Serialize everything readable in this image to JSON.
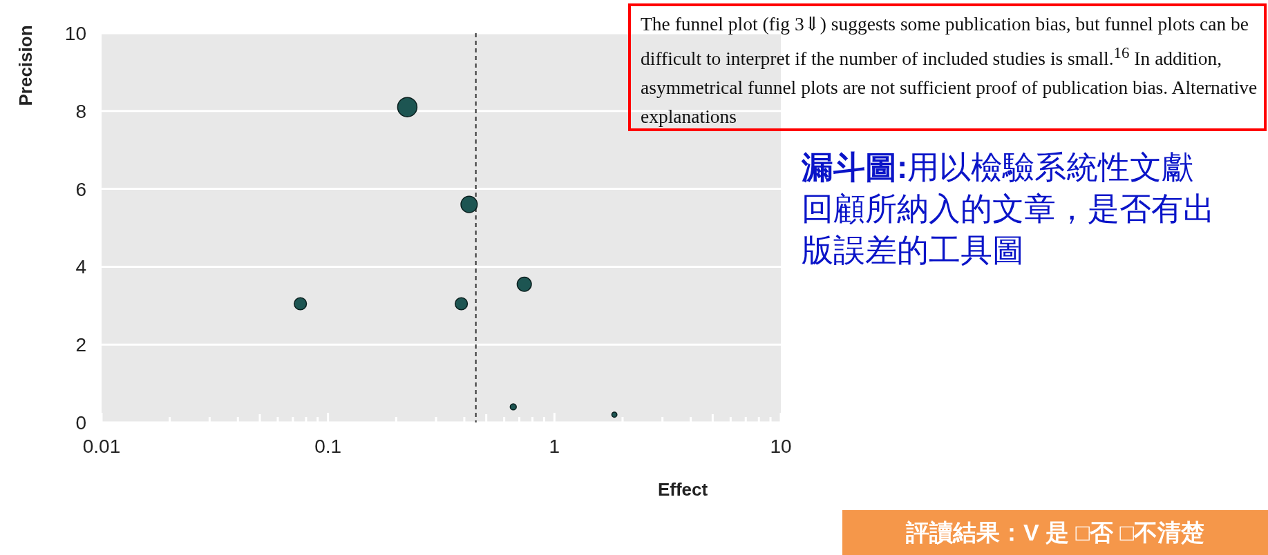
{
  "chart_data": {
    "type": "bubble",
    "xlabel": "Effect",
    "ylabel": "Precision",
    "x": [
      0.224,
      0.42,
      0.0755,
      0.388,
      0.736,
      0.658,
      1.84
    ],
    "values": [
      8.1,
      5.6,
      3.05,
      3.05,
      3.55,
      0.4,
      0.2
    ],
    "sizes": [
      1,
      0.71,
      0.4,
      0.4,
      0.54,
      0.1,
      0.07
    ],
    "color": "#1d5552",
    "xlim": [
      0.01,
      10
    ],
    "ylim": [
      0,
      10
    ],
    "xticks": [
      0.01,
      0.1,
      1,
      10
    ],
    "yticks": [
      0,
      2,
      4,
      6,
      8,
      10
    ],
    "log": "x",
    "grid": "y",
    "ref_lines": [
      {
        "axis": "x",
        "value": 0.45,
        "color": "#333333",
        "line_style": "dashed"
      }
    ],
    "annotations": [
      "The funnel plot (fig 3⇓) suggests some publication bias, but funnel plots can be difficult to interpret if the number of included studies is small.$^{16}$ In addition, asymmetrical funnel plots are not sufficient proof of publication bias. Alternative explanations",
      "漏斗圖:",
      "用以檢驗系統性文獻回顧所納入的文章，是否有出版誤差的工具圖",
      "評讀結果：V 是 □否 □不清楚"
    ]
  }
}
